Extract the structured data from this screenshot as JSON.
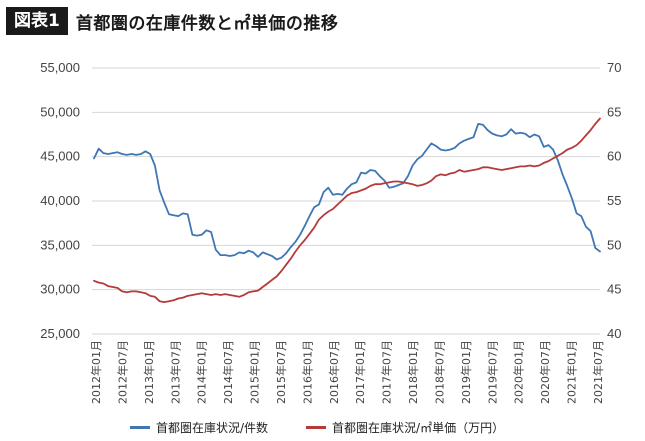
{
  "header": {
    "badge": "図表1",
    "title": "首都圏の在庫件数と㎡単価の推移"
  },
  "chart_data": {
    "type": "line",
    "yleft_ticks": [
      "55,000",
      "50,000",
      "45,000",
      "40,000",
      "35,000",
      "30,000",
      "25,000"
    ],
    "yleft_lim": [
      25000,
      55000
    ],
    "yright_ticks": [
      "70",
      "65",
      "60",
      "55",
      "50",
      "45",
      "40"
    ],
    "yright_lim": [
      40,
      70
    ],
    "x_tick_labels": [
      "2012年01月",
      "2012年07月",
      "2013年01月",
      "2013年07月",
      "2014年01月",
      "2014年07月",
      "2015年01月",
      "2015年07月",
      "2016年01月",
      "2016年07月",
      "2017年01月",
      "2017年07月",
      "2018年01月",
      "2018年07月",
      "2019年01月",
      "2019年07月",
      "2020年01月",
      "2020年07月",
      "2021年01月",
      "2021年07月"
    ],
    "series": [
      {
        "name": "首都圏在庫状況/件数",
        "axis": "left",
        "color": "#3f76b4",
        "values": [
          44800,
          45900,
          45400,
          45300,
          45400,
          45500,
          45300,
          45200,
          45300,
          45200,
          45300,
          45600,
          45300,
          44000,
          41200,
          39800,
          38500,
          38400,
          38300,
          38600,
          38500,
          36200,
          36100,
          36200,
          36700,
          36500,
          34500,
          33900,
          33900,
          33800,
          33900,
          34200,
          34100,
          34400,
          34200,
          33700,
          34200,
          34000,
          33800,
          33400,
          33600,
          34100,
          34800,
          35400,
          36200,
          37200,
          38300,
          39300,
          39600,
          41000,
          41500,
          40700,
          40800,
          40700,
          41400,
          41900,
          42100,
          43200,
          43100,
          43500,
          43400,
          42800,
          42300,
          41500,
          41600,
          41800,
          42000,
          42800,
          44000,
          44700,
          45100,
          45800,
          46500,
          46200,
          45800,
          45700,
          45800,
          46000,
          46500,
          46800,
          47000,
          47200,
          48700,
          48600,
          48000,
          47600,
          47400,
          47300,
          47500,
          48100,
          47600,
          47700,
          47600,
          47200,
          47500,
          47300,
          46100,
          46300,
          45800,
          44600,
          43000,
          41700,
          40300,
          38600,
          38300,
          37100,
          36600,
          34700,
          34300
        ]
      },
      {
        "name": "首都圏在庫状況/㎡単価（万円）",
        "axis": "right",
        "color": "#b53a3a",
        "values": [
          46.0,
          45.8,
          45.7,
          45.4,
          45.3,
          45.2,
          44.8,
          44.7,
          44.8,
          44.8,
          44.7,
          44.6,
          44.3,
          44.2,
          43.7,
          43.6,
          43.7,
          43.8,
          44.0,
          44.1,
          44.3,
          44.4,
          44.5,
          44.6,
          44.5,
          44.4,
          44.5,
          44.4,
          44.5,
          44.4,
          44.3,
          44.2,
          44.4,
          44.7,
          44.8,
          44.9,
          45.3,
          45.7,
          46.1,
          46.5,
          47.1,
          47.8,
          48.5,
          49.3,
          50.0,
          50.6,
          51.3,
          52.0,
          52.9,
          53.4,
          53.8,
          54.1,
          54.6,
          55.1,
          55.6,
          55.9,
          56.0,
          56.2,
          56.4,
          56.7,
          56.9,
          56.9,
          57.0,
          57.1,
          57.2,
          57.2,
          57.1,
          57.0,
          56.9,
          56.7,
          56.8,
          57.0,
          57.3,
          57.8,
          58.0,
          57.9,
          58.1,
          58.2,
          58.5,
          58.3,
          58.4,
          58.5,
          58.6,
          58.8,
          58.8,
          58.7,
          58.6,
          58.5,
          58.6,
          58.7,
          58.8,
          58.9,
          58.9,
          59.0,
          58.9,
          59.0,
          59.3,
          59.5,
          59.8,
          60.1,
          60.4,
          60.8,
          61.0,
          61.3,
          61.8,
          62.4,
          63.0,
          63.7,
          64.3
        ]
      }
    ]
  }
}
